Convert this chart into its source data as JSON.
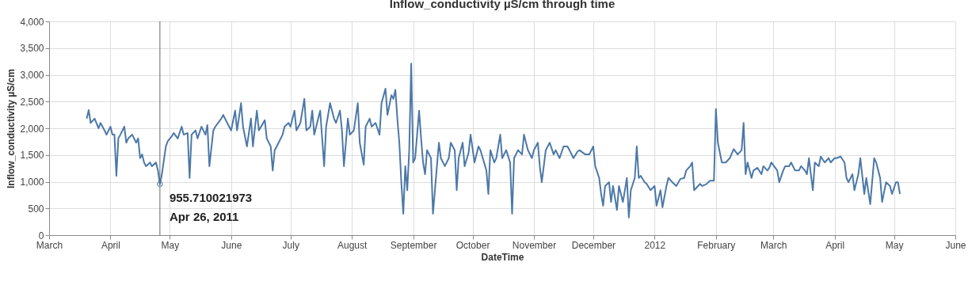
{
  "chart_data": {
    "type": "line",
    "title": "Inflow_conductivity µS/cm through time",
    "xlabel": "DateTime",
    "ylabel": "Inflow_conductivity µS/cm",
    "x": [
      "2011-03-20",
      "2011-03-21",
      "2011-03-22",
      "2011-03-24",
      "2011-03-26",
      "2011-03-27",
      "2011-03-29",
      "2011-03-30",
      "2011-04-01",
      "2011-04-02",
      "2011-04-03",
      "2011-04-04",
      "2011-04-05",
      "2011-04-06",
      "2011-04-08",
      "2011-04-09",
      "2011-04-10",
      "2011-04-12",
      "2011-04-14",
      "2011-04-15",
      "2011-04-16",
      "2011-04-17",
      "2011-04-18",
      "2011-04-19",
      "2011-04-21",
      "2011-04-22",
      "2011-04-24",
      "2011-04-25",
      "2011-04-26",
      "2011-04-27",
      "2011-04-29",
      "2011-04-30",
      "2011-05-02",
      "2011-05-03",
      "2011-05-05",
      "2011-05-07",
      "2011-05-08",
      "2011-05-10",
      "2011-05-11",
      "2011-05-12",
      "2011-05-14",
      "2011-05-15",
      "2011-05-17",
      "2011-05-19",
      "2011-05-20",
      "2011-05-21",
      "2011-05-23",
      "2011-05-24",
      "2011-05-27",
      "2011-05-28",
      "2011-05-30",
      "2011-06-01",
      "2011-06-03",
      "2011-06-04",
      "2011-06-06",
      "2011-06-07",
      "2011-06-09",
      "2011-06-11",
      "2011-06-12",
      "2011-06-14",
      "2011-06-15",
      "2011-06-18",
      "2011-06-19",
      "2011-06-21",
      "2011-06-22",
      "2011-06-23",
      "2011-06-25",
      "2011-06-27",
      "2011-06-28",
      "2011-06-30",
      "2011-07-01",
      "2011-07-03",
      "2011-07-04",
      "2011-07-06",
      "2011-07-08",
      "2011-07-09",
      "2011-07-11",
      "2011-07-12",
      "2011-07-13",
      "2011-07-15",
      "2011-07-16",
      "2011-07-18",
      "2011-07-19",
      "2011-07-21",
      "2011-07-23",
      "2011-07-24",
      "2011-07-26",
      "2011-07-27",
      "2011-07-28",
      "2011-07-30",
      "2011-07-31",
      "2011-08-02",
      "2011-08-04",
      "2011-08-05",
      "2011-08-07",
      "2011-08-08",
      "2011-08-10",
      "2011-08-11",
      "2011-08-13",
      "2011-08-15",
      "2011-08-16",
      "2011-08-18",
      "2011-08-19",
      "2011-08-21",
      "2011-08-22",
      "2011-08-23",
      "2011-08-24",
      "2011-08-25",
      "2011-08-26",
      "2011-08-27",
      "2011-08-28",
      "2011-08-29",
      "2011-08-30",
      "2011-08-31",
      "2011-09-01",
      "2011-09-02",
      "2011-09-04",
      "2011-09-05",
      "2011-09-06",
      "2011-09-07",
      "2011-09-08",
      "2011-09-10",
      "2011-09-11",
      "2011-09-13",
      "2011-09-14",
      "2011-09-15",
      "2011-09-17",
      "2011-09-19",
      "2011-09-20",
      "2011-09-22",
      "2011-09-23",
      "2011-09-24",
      "2011-09-26",
      "2011-09-27",
      "2011-09-29",
      "2011-09-30",
      "2011-10-02",
      "2011-10-04",
      "2011-10-05",
      "2011-10-08",
      "2011-10-09",
      "2011-10-10",
      "2011-10-12",
      "2011-10-13",
      "2011-10-15",
      "2011-10-16",
      "2011-10-18",
      "2011-10-20",
      "2011-10-21",
      "2011-10-22",
      "2011-10-24",
      "2011-10-26",
      "2011-10-27",
      "2011-10-29",
      "2011-10-31",
      "2011-11-01",
      "2011-11-03",
      "2011-11-04",
      "2011-11-05",
      "2011-11-07",
      "2011-11-09",
      "2011-11-11",
      "2011-11-12",
      "2011-11-14",
      "2011-11-16",
      "2011-11-18",
      "2011-11-19",
      "2011-11-21",
      "2011-11-23",
      "2011-11-24",
      "2011-11-27",
      "2011-11-29",
      "2011-12-01",
      "2011-12-02",
      "2011-12-04",
      "2011-12-05",
      "2011-12-06",
      "2011-12-07",
      "2011-12-09",
      "2011-12-10",
      "2011-12-11",
      "2011-12-13",
      "2011-12-14",
      "2011-12-16",
      "2011-12-17",
      "2011-12-18",
      "2011-12-19",
      "2011-12-20",
      "2011-12-22",
      "2011-12-23",
      "2011-12-24",
      "2011-12-25",
      "2011-12-27",
      "2011-12-28",
      "2011-12-30",
      "2012-01-01",
      "2012-01-02",
      "2012-01-04",
      "2012-01-05",
      "2012-01-07",
      "2012-01-08",
      "2012-01-10",
      "2012-01-12",
      "2012-01-14",
      "2012-01-16",
      "2012-01-17",
      "2012-01-19",
      "2012-01-20",
      "2012-01-21",
      "2012-01-24",
      "2012-01-25",
      "2012-01-27",
      "2012-01-29",
      "2012-01-31",
      "2012-02-01",
      "2012-02-02",
      "2012-02-04",
      "2012-02-06",
      "2012-02-08",
      "2012-02-10",
      "2012-02-12",
      "2012-02-14",
      "2012-02-15",
      "2012-02-16",
      "2012-02-17",
      "2012-02-19",
      "2012-02-20",
      "2012-02-22",
      "2012-02-24",
      "2012-02-25",
      "2012-02-27",
      "2012-02-28",
      "2012-02-29",
      "2012-03-02",
      "2012-03-03",
      "2012-03-04",
      "2012-03-06",
      "2012-03-07",
      "2012-03-09",
      "2012-03-10",
      "2012-03-12",
      "2012-03-14",
      "2012-03-15",
      "2012-03-17",
      "2012-03-18",
      "2012-03-19",
      "2012-03-21",
      "2012-03-22",
      "2012-03-24",
      "2012-03-25",
      "2012-03-27",
      "2012-03-29",
      "2012-03-30",
      "2012-04-01",
      "2012-04-02",
      "2012-04-04",
      "2012-04-06",
      "2012-04-07",
      "2012-04-08",
      "2012-04-10",
      "2012-04-11",
      "2012-04-13",
      "2012-04-14",
      "2012-04-16",
      "2012-04-17",
      "2012-04-19",
      "2012-04-21",
      "2012-04-22",
      "2012-04-24",
      "2012-04-25",
      "2012-04-27",
      "2012-04-29",
      "2012-04-30",
      "2012-05-02",
      "2012-05-03",
      "2012-05-04"
    ],
    "series": [
      {
        "color": "#4c78a8",
        "values": [
          2180,
          2340,
          2100,
          2180,
          2000,
          2100,
          1960,
          1880,
          2030,
          1880,
          1880,
          1110,
          1810,
          1880,
          2030,
          1730,
          1810,
          1880,
          1730,
          1810,
          1440,
          1510,
          1360,
          1290,
          1360,
          1290,
          1360,
          1210,
          955.71,
          1140,
          1660,
          1760,
          1850,
          1910,
          1810,
          2030,
          1880,
          1910,
          1070,
          1880,
          1960,
          1810,
          2030,
          1880,
          2060,
          1290,
          1960,
          2030,
          2180,
          2250,
          2100,
          1960,
          2330,
          1960,
          2470,
          2030,
          1660,
          2180,
          1660,
          2330,
          1960,
          2150,
          1810,
          1660,
          1210,
          1590,
          1730,
          1880,
          2030,
          2100,
          2030,
          2330,
          1960,
          2100,
          2550,
          1960,
          2030,
          2330,
          1880,
          2180,
          2330,
          1290,
          2030,
          2470,
          2180,
          2100,
          2330,
          1960,
          1290,
          2180,
          1880,
          1960,
          2470,
          1730,
          1320,
          2030,
          2180,
          2030,
          2100,
          1880,
          2470,
          2740,
          2250,
          2620,
          2550,
          2720,
          2180,
          1730,
          990,
          400,
          1290,
          840,
          1590,
          3210,
          1360,
          1440,
          2330,
          1810,
          1360,
          1140,
          1590,
          1440,
          400,
          1290,
          1730,
          1440,
          1290,
          1440,
          1730,
          1590,
          840,
          1440,
          1730,
          1290,
          1540,
          1880,
          1360,
          1660,
          1590,
          1210,
          770,
          1590,
          1360,
          1440,
          1880,
          1440,
          1590,
          1360,
          400,
          1440,
          1590,
          1510,
          1880,
          1590,
          1440,
          1590,
          1730,
          1290,
          990,
          1590,
          1730,
          1510,
          1590,
          1440,
          1660,
          1660,
          1590,
          1440,
          1560,
          1590,
          1510,
          1510,
          1660,
          1290,
          1070,
          770,
          550,
          920,
          990,
          620,
          920,
          470,
          920,
          620,
          840,
          1070,
          330,
          840,
          1070,
          1660,
          1070,
          1110,
          990,
          960,
          840,
          920,
          550,
          840,
          520,
          920,
          1070,
          990,
          920,
          1050,
          1070,
          1210,
          1290,
          1360,
          840,
          960,
          920,
          950,
          1020,
          1020,
          2360,
          1730,
          1360,
          1360,
          1440,
          1610,
          1510,
          1590,
          2100,
          1140,
          1360,
          1070,
          1210,
          1260,
          1140,
          1290,
          1210,
          1260,
          1360,
          1260,
          1210,
          990,
          1210,
          1290,
          1290,
          1360,
          1210,
          1210,
          1290,
          1210,
          1140,
          1440,
          840,
          1360,
          1290,
          1470,
          1360,
          1440,
          1360,
          1440,
          1440,
          1470,
          1360,
          1070,
          990,
          1140,
          840,
          1140,
          1440,
          770,
          1070,
          580,
          1440,
          1360,
          1070,
          620,
          990,
          920,
          770,
          990,
          990,
          770
        ]
      }
    ],
    "xlim": [
      "2011-03-01",
      "2012-06-01"
    ],
    "xticks": [
      {
        "value": "2011-03-01",
        "label": "March"
      },
      {
        "value": "2011-04-01",
        "label": "April"
      },
      {
        "value": "2011-05-01",
        "label": "May"
      },
      {
        "value": "2011-06-01",
        "label": "June"
      },
      {
        "value": "2011-07-01",
        "label": "July"
      },
      {
        "value": "2011-08-01",
        "label": "August"
      },
      {
        "value": "2011-09-01",
        "label": "September"
      },
      {
        "value": "2011-10-01",
        "label": "October"
      },
      {
        "value": "2011-11-01",
        "label": "November"
      },
      {
        "value": "2011-12-01",
        "label": "December"
      },
      {
        "value": "2012-01-01",
        "label": "2012"
      },
      {
        "value": "2012-02-01",
        "label": "February"
      },
      {
        "value": "2012-03-01",
        "label": "March"
      },
      {
        "value": "2012-04-01",
        "label": "April"
      },
      {
        "value": "2012-05-01",
        "label": "May"
      },
      {
        "value": "2012-06-01",
        "label": "June"
      }
    ],
    "ylim": [
      0,
      4000
    ],
    "yticks": [
      0,
      500,
      {
        "value": 1000,
        "label": "1,000"
      },
      {
        "value": 1500,
        "label": "1,500"
      },
      {
        "value": 2000,
        "label": "2,000"
      },
      {
        "value": 2500,
        "label": "2,500"
      },
      {
        "value": 3000,
        "label": "3,000"
      },
      {
        "value": 3500,
        "label": "3,500"
      },
      {
        "value": 4000,
        "label": "4,000"
      }
    ],
    "grid": true,
    "ref_lines": [
      {
        "axis": "x",
        "value": "2011-04-26",
        "color": "#666666"
      }
    ],
    "annotations": [
      {
        "text": "955.710021973",
        "x": "2011-04-26",
        "y": 955.71
      },
      {
        "text": "Apr 26, 2011",
        "x": "2011-04-26",
        "y": 955.71
      }
    ]
  }
}
